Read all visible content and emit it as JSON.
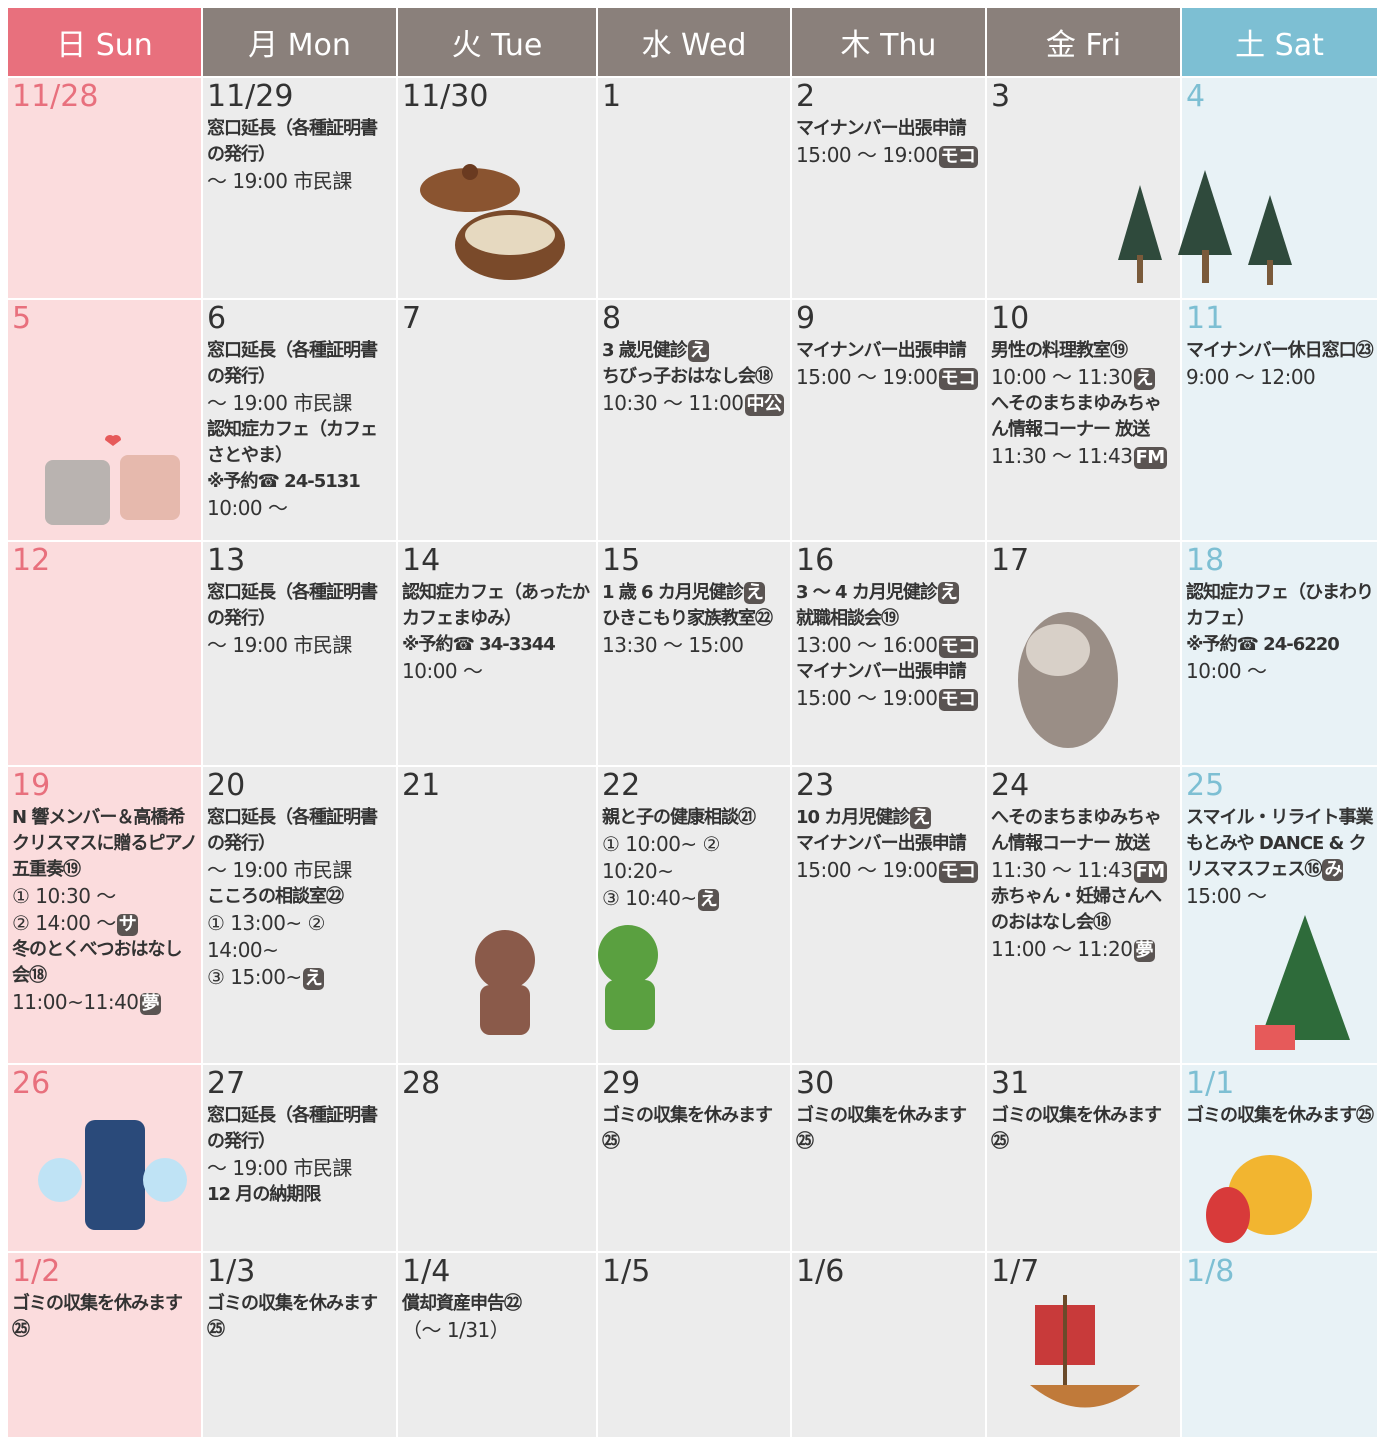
{
  "header": [
    "日 Sun",
    "月 Mon",
    "火 Tue",
    "水 Wed",
    "木 Thu",
    "金 Fri",
    "土 Sat"
  ],
  "weeks": [
    [
      {
        "date": "11/28",
        "lines": []
      },
      {
        "date": "11/29",
        "lines": [
          {
            "text": "窓口延長（各種証明書の発行）",
            "bold": true
          },
          {
            "text": "～ 19:00 市民課"
          }
        ]
      },
      {
        "date": "11/30",
        "lines": []
      },
      {
        "date": "1",
        "lines": []
      },
      {
        "date": "2",
        "lines": [
          {
            "text": "マイナンバー出張申請",
            "bold": true
          },
          {
            "text": "15:00 ～ 19:00",
            "badge": "モコ"
          }
        ]
      },
      {
        "date": "3",
        "lines": []
      },
      {
        "date": "4",
        "lines": []
      }
    ],
    [
      {
        "date": "5",
        "lines": []
      },
      {
        "date": "6",
        "lines": [
          {
            "text": "窓口延長（各種証明書の発行）",
            "bold": true
          },
          {
            "text": "～ 19:00 市民課"
          },
          {
            "text": "認知症カフェ（カフェさとやま）",
            "bold": true
          },
          {
            "text": "※予約☎ 24-5131",
            "bold": true
          },
          {
            "text": "10:00 ～"
          }
        ]
      },
      {
        "date": "7",
        "lines": []
      },
      {
        "date": "8",
        "lines": [
          {
            "text": "3 歳児健診",
            "bold": true,
            "badge": "え"
          },
          {
            "text": "ちびっ子おはなし会⑱",
            "bold": true
          },
          {
            "text": "10:30 ～ 11:00",
            "badge": "中公"
          }
        ]
      },
      {
        "date": "9",
        "lines": [
          {
            "text": "マイナンバー出張申請",
            "bold": true
          },
          {
            "text": "15:00 ～ 19:00",
            "badge": "モコ"
          }
        ]
      },
      {
        "date": "10",
        "lines": [
          {
            "text": "男性の料理教室⑲",
            "bold": true
          },
          {
            "text": "10:00 ～ 11:30",
            "badge": "え"
          },
          {
            "text": "へそのまちまゆみちゃん情報コーナー 放送",
            "bold": true
          },
          {
            "text": "11:30 ～ 11:43",
            "badge": "FM"
          }
        ]
      },
      {
        "date": "11",
        "lines": [
          {
            "text": "マイナンバー休日窓口㉓",
            "bold": true
          },
          {
            "text": "9:00 ～ 12:00"
          }
        ]
      }
    ],
    [
      {
        "date": "12",
        "lines": []
      },
      {
        "date": "13",
        "lines": [
          {
            "text": "窓口延長（各種証明書の発行）",
            "bold": true
          },
          {
            "text": "～ 19:00 市民課"
          }
        ]
      },
      {
        "date": "14",
        "lines": [
          {
            "text": "認知症カフェ（あったかカフェまゆみ）",
            "bold": true
          },
          {
            "text": "※予約☎ 34-3344",
            "bold": true
          },
          {
            "text": "10:00 ～"
          }
        ]
      },
      {
        "date": "15",
        "lines": [
          {
            "text": "1 歳 6 カ月児健診",
            "bold": true,
            "badge": "え"
          },
          {
            "text": "ひきこもり家族教室㉒",
            "bold": true
          },
          {
            "text": "13:30 ～ 15:00"
          }
        ]
      },
      {
        "date": "16",
        "lines": [
          {
            "text": "3 ～ 4 カ月児健診",
            "bold": true,
            "badge": "え"
          },
          {
            "text": "就職相談会⑲",
            "bold": true
          },
          {
            "text": "13:00 ～ 16:00",
            "badge": "モコ"
          },
          {
            "text": "マイナンバー出張申請",
            "bold": true
          },
          {
            "text": "15:00 ～ 19:00",
            "badge": "モコ"
          }
        ]
      },
      {
        "date": "17",
        "lines": []
      },
      {
        "date": "18",
        "lines": [
          {
            "text": "認知症カフェ（ひまわりカフェ）",
            "bold": true
          },
          {
            "text": "※予約☎ 24-6220",
            "bold": true
          },
          {
            "text": "10:00 ～"
          }
        ]
      }
    ],
    [
      {
        "date": "19",
        "lines": [
          {
            "text": "N 響メンバー＆高橋希クリスマスに贈るピアノ五重奏⑲",
            "bold": true
          },
          {
            "text": "① 10:30 ～"
          },
          {
            "text": "② 14:00 ～",
            "badge": "サ"
          },
          {
            "text": "冬のとくべつおはなし会⑱",
            "bold": true
          },
          {
            "text": "11:00~11:40",
            "badge": "夢"
          }
        ]
      },
      {
        "date": "20",
        "lines": [
          {
            "text": "窓口延長（各種証明書の発行）",
            "bold": true
          },
          {
            "text": "～ 19:00 市民課"
          },
          {
            "text": "こころの相談室㉒",
            "bold": true
          },
          {
            "text": "① 13:00~ ② 14:00~"
          },
          {
            "text": "③ 15:00~",
            "badge": "え"
          }
        ]
      },
      {
        "date": "21",
        "lines": []
      },
      {
        "date": "22",
        "lines": [
          {
            "text": "親と子の健康相談㉑",
            "bold": true
          },
          {
            "text": "① 10:00~ ② 10:20~"
          },
          {
            "text": "③ 10:40~",
            "badge": "え"
          }
        ]
      },
      {
        "date": "23",
        "lines": [
          {
            "text": "10 カ月児健診",
            "bold": true,
            "badge": "え"
          },
          {
            "text": "マイナンバー出張申請",
            "bold": true
          },
          {
            "text": "15:00 ～ 19:00",
            "badge": "モコ"
          }
        ]
      },
      {
        "date": "24",
        "lines": [
          {
            "text": "へそのまちまゆみちゃん情報コーナー 放送",
            "bold": true
          },
          {
            "text": "11:30 ～ 11:43",
            "badge": "FM"
          },
          {
            "text": "赤ちゃん・妊婦さんへのおはなし会⑱",
            "bold": true
          },
          {
            "text": "11:00 ～ 11:20",
            "badge": "夢"
          }
        ]
      },
      {
        "date": "25",
        "lines": [
          {
            "text": "スマイル・リライト事業もとみや DANCE & クリスマスフェス⑯",
            "bold": true,
            "badge": "み"
          },
          {
            "text": "15:00 ～"
          }
        ]
      }
    ],
    [
      {
        "date": "26",
        "lines": []
      },
      {
        "date": "27",
        "lines": [
          {
            "text": "窓口延長（各種証明書の発行）",
            "bold": true
          },
          {
            "text": "～ 19:00 市民課"
          },
          {
            "text": "12 月の納期限",
            "bold": true
          }
        ]
      },
      {
        "date": "28",
        "lines": []
      },
      {
        "date": "29",
        "lines": [
          {
            "text": "ゴミの収集を休みます㉕",
            "bold": true
          }
        ]
      },
      {
        "date": "30",
        "lines": [
          {
            "text": "ゴミの収集を休みます㉕",
            "bold": true
          }
        ]
      },
      {
        "date": "31",
        "lines": [
          {
            "text": "ゴミの収集を休みます㉕",
            "bold": true
          }
        ]
      },
      {
        "date": "1/1",
        "holiday": true,
        "lines": [
          {
            "text": "ゴミの収集を休みます㉕",
            "bold": true
          }
        ]
      }
    ],
    [
      {
        "date": "1/2",
        "lines": [
          {
            "text": "ゴミの収集を休みます㉕",
            "bold": true
          }
        ]
      },
      {
        "date": "1/3",
        "lines": [
          {
            "text": "ゴミの収集を休みます㉕",
            "bold": true
          }
        ]
      },
      {
        "date": "1/4",
        "lines": [
          {
            "text": "償却資産申告㉒",
            "bold": true
          },
          {
            "text": "（～ 1/31）"
          }
        ]
      },
      {
        "date": "1/5",
        "lines": []
      },
      {
        "date": "1/6",
        "lines": []
      },
      {
        "date": "1/7",
        "lines": []
      },
      {
        "date": "1/8",
        "lines": []
      }
    ]
  ]
}
